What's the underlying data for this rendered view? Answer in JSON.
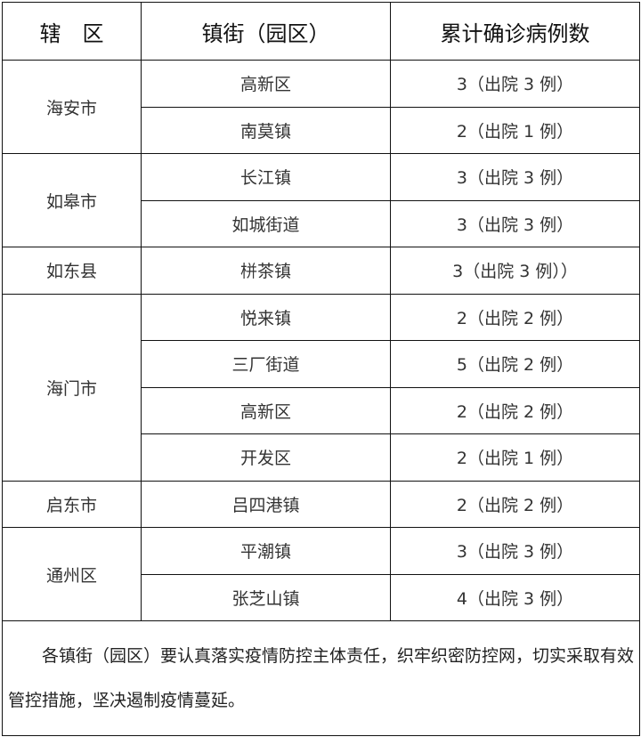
{
  "headers": [
    "辖　区",
    "镇街（园区）",
    "累计确诊病例数"
  ],
  "groups": [
    {
      "district": "海安市",
      "rows": [
        {
          "town": "高新区",
          "count": "3（出院 3 例）"
        },
        {
          "town": "南莫镇",
          "count": "2（出院 1 例）"
        }
      ]
    },
    {
      "district": "如皋市",
      "rows": [
        {
          "town": "长江镇",
          "count": "3（出院 3 例）"
        },
        {
          "town": "如城街道",
          "count": "3（出院 3 例）"
        }
      ]
    },
    {
      "district": "如东县",
      "rows": [
        {
          "town": "栟茶镇",
          "count": "3（出院 3 例））"
        }
      ]
    },
    {
      "district": "海门市",
      "rows": [
        {
          "town": "悦来镇",
          "count": "2（出院 2 例）"
        },
        {
          "town": "三厂街道",
          "count": "5（出院 2 例）"
        },
        {
          "town": "高新区",
          "count": "2（出院 2 例）"
        },
        {
          "town": "开发区",
          "count": "2（出院 1 例）"
        }
      ]
    },
    {
      "district": "启东市",
      "rows": [
        {
          "town": "吕四港镇",
          "count": "2（出院 2 例）"
        }
      ]
    },
    {
      "district": "通州区",
      "rows": [
        {
          "town": "平潮镇",
          "count": "3（出院 3 例）"
        },
        {
          "town": "张芝山镇",
          "count": "4（出院 3 例）"
        }
      ]
    }
  ],
  "note": "各镇街（园区）要认真落实疫情防控主体责任，织牢织密防控网，切实采取有效管控措施，坚决遏制疫情蔓延。"
}
